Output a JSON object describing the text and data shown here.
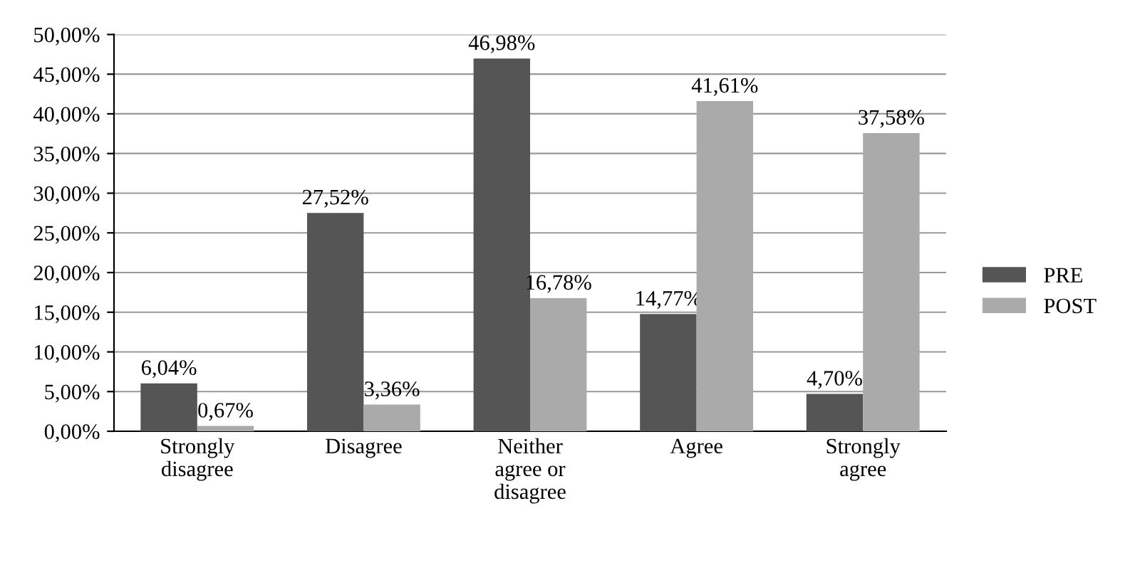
{
  "chart_data": {
    "type": "bar",
    "categories": [
      "Strongly\ndisagree",
      "Disagree",
      "Neither\nagree or\ndisagree",
      "Agree",
      "Strongly\nagree"
    ],
    "series": [
      {
        "name": "PRE",
        "color": "#555555",
        "values": [
          6.04,
          27.52,
          46.98,
          14.77,
          4.7
        ],
        "value_labels": [
          "6,04%",
          "27,52%",
          "46,98%",
          "14,77%",
          "4,70%"
        ]
      },
      {
        "name": "POST",
        "color": "#aaaaaa",
        "values": [
          0.67,
          3.36,
          16.78,
          41.61,
          37.58
        ],
        "value_labels": [
          "0,67%",
          "3,36%",
          "16,78%",
          "41,61%",
          "37,58%"
        ]
      }
    ],
    "ylim": [
      0,
      50
    ],
    "yticks": [
      {
        "value": 0,
        "label": "0,00%"
      },
      {
        "value": 5,
        "label": "5,00%"
      },
      {
        "value": 10,
        "label": "10,00%"
      },
      {
        "value": 15,
        "label": "15,00%"
      },
      {
        "value": 20,
        "label": "20,00%"
      },
      {
        "value": 25,
        "label": "25,00%"
      },
      {
        "value": 30,
        "label": "30,00%"
      },
      {
        "value": 35,
        "label": "35,00%"
      },
      {
        "value": 40,
        "label": "40,00%"
      },
      {
        "value": 45,
        "label": "45,00%"
      },
      {
        "value": 50,
        "label": "50,00%"
      }
    ],
    "grid": "y",
    "legend": "right"
  }
}
